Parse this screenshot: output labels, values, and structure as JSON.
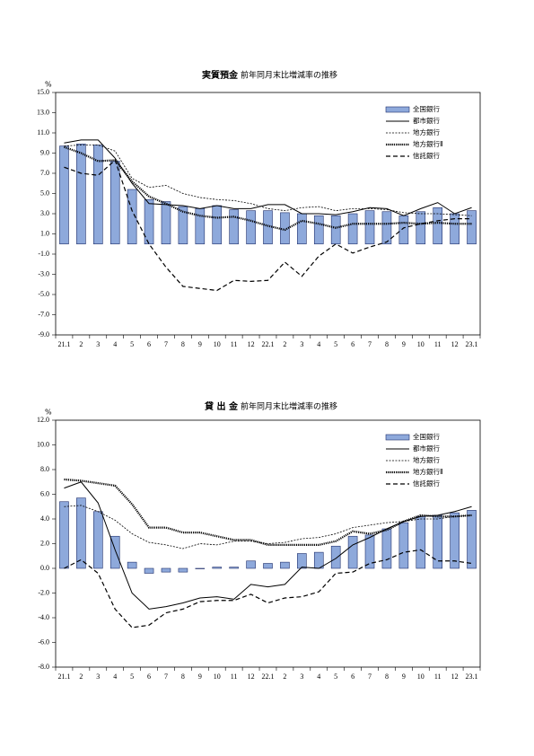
{
  "chart_data": [
    {
      "type": "combo",
      "title": "実質預金",
      "subtitle": "前年同月末比増減率の推移",
      "y_unit": "%",
      "categories": [
        "21.1",
        "2",
        "3",
        "4",
        "5",
        "6",
        "7",
        "8",
        "9",
        "10",
        "11",
        "12",
        "22.1",
        "2",
        "3",
        "4",
        "5",
        "6",
        "7",
        "8",
        "9",
        "10",
        "11",
        "12",
        "23.1"
      ],
      "ylim": [
        -9,
        15
      ],
      "yticks": [
        {
          "value": 15,
          "label": "15.0"
        },
        {
          "value": 13,
          "label": "13.0"
        },
        {
          "value": 11,
          "label": "11.0"
        },
        {
          "value": 9,
          "label": "9.0"
        },
        {
          "value": 7,
          "label": "7.0"
        },
        {
          "value": 5,
          "label": "5.0"
        },
        {
          "value": 3,
          "label": "3.0"
        },
        {
          "value": 1,
          "label": "1.0"
        },
        {
          "value": -1,
          "label": "-1.0"
        },
        {
          "value": -3,
          "label": "-3.0"
        },
        {
          "value": -5,
          "label": "-5.0"
        },
        {
          "value": -7,
          "label": "-7.0"
        },
        {
          "value": -9,
          "label": "-9.0"
        }
      ],
      "series": [
        {
          "name": "全国銀行",
          "type": "bar",
          "color": "#8ea9db",
          "values": [
            9.7,
            9.9,
            9.8,
            8.2,
            5.4,
            4.4,
            4.2,
            3.7,
            3.5,
            3.8,
            3.4,
            3.3,
            3.3,
            3.1,
            3.0,
            2.8,
            2.8,
            3.0,
            3.3,
            3.2,
            2.8,
            3.2,
            3.6,
            3.0,
            3.3
          ]
        },
        {
          "name": "都市銀行",
          "type": "line",
          "style": "solid",
          "color": "#000000",
          "values": [
            10.0,
            10.3,
            10.3,
            8.5,
            6.0,
            4.0,
            3.9,
            3.8,
            3.5,
            3.8,
            3.5,
            3.5,
            3.9,
            3.9,
            3.0,
            3.0,
            2.9,
            3.2,
            3.6,
            3.5,
            2.8,
            3.5,
            4.1,
            3.0,
            3.6
          ]
        },
        {
          "name": "地方銀行",
          "type": "line",
          "style": "dashed",
          "color": "#000000",
          "values": [
            9.7,
            9.8,
            9.8,
            9.2,
            6.5,
            5.6,
            5.8,
            5.0,
            4.6,
            4.4,
            4.3,
            4.0,
            3.5,
            3.3,
            3.6,
            3.7,
            3.3,
            3.5,
            3.5,
            3.4,
            3.1,
            3.0,
            3.0,
            2.9,
            2.8
          ]
        },
        {
          "name": "地方銀行Ⅱ",
          "type": "line",
          "style": "dotted",
          "color": "#000000",
          "values": [
            9.6,
            9.0,
            8.2,
            8.3,
            6.2,
            4.7,
            4.0,
            3.2,
            2.8,
            2.6,
            2.7,
            2.3,
            1.8,
            1.4,
            2.3,
            2.0,
            1.6,
            2.0,
            2.0,
            2.0,
            2.1,
            2.0,
            2.1,
            2.0,
            2.0
          ]
        },
        {
          "name": "信託銀行",
          "type": "line",
          "style": "longdash",
          "color": "#000000",
          "values": [
            7.6,
            7.0,
            6.8,
            8.3,
            3.3,
            0.0,
            -2.3,
            -4.2,
            -4.4,
            -4.6,
            -3.6,
            -3.7,
            -3.6,
            -1.8,
            -3.2,
            -1.2,
            0.0,
            -0.9,
            -0.3,
            0.2,
            1.6,
            2.0,
            2.3,
            2.5,
            2.5
          ]
        }
      ]
    },
    {
      "type": "combo",
      "title": "貸 出 金",
      "subtitle": "前年同月末比増減率の推移",
      "y_unit": "%",
      "categories": [
        "21.1",
        "2",
        "3",
        "4",
        "5",
        "6",
        "7",
        "8",
        "9",
        "10",
        "11",
        "12",
        "22.1",
        "2",
        "3",
        "4",
        "5",
        "6",
        "7",
        "8",
        "9",
        "10",
        "11",
        "12",
        "23.1"
      ],
      "ylim": [
        -8,
        12
      ],
      "yticks": [
        {
          "value": 12,
          "label": "12.0"
        },
        {
          "value": 10,
          "label": "10.0"
        },
        {
          "value": 8,
          "label": "8.0"
        },
        {
          "value": 6,
          "label": "6.0"
        },
        {
          "value": 4,
          "label": "4.0"
        },
        {
          "value": 2,
          "label": "2.0"
        },
        {
          "value": 0,
          "label": "0.0"
        },
        {
          "value": -2,
          "label": "-2.0"
        },
        {
          "value": -4,
          "label": "-4.0"
        },
        {
          "value": -6,
          "label": "-6.0"
        },
        {
          "value": -8,
          "label": "-8.0"
        }
      ],
      "series": [
        {
          "name": "全国銀行",
          "type": "bar",
          "color": "#8ea9db",
          "values": [
            5.4,
            5.7,
            4.6,
            2.6,
            0.5,
            -0.4,
            -0.3,
            -0.3,
            0.0,
            0.1,
            0.1,
            0.6,
            0.4,
            0.5,
            1.2,
            1.3,
            1.8,
            2.6,
            2.7,
            3.2,
            3.7,
            4.2,
            4.3,
            4.5,
            4.7
          ]
        },
        {
          "name": "都市銀行",
          "type": "line",
          "style": "solid",
          "color": "#000000",
          "values": [
            6.5,
            7.0,
            5.3,
            1.5,
            -2.0,
            -3.3,
            -3.1,
            -2.8,
            -2.4,
            -2.3,
            -2.5,
            -1.3,
            -1.5,
            -1.3,
            0.1,
            0.0,
            0.8,
            1.9,
            2.5,
            3.2,
            3.8,
            4.2,
            4.3,
            4.6,
            5.0
          ]
        },
        {
          "name": "地方銀行",
          "type": "line",
          "style": "dashed",
          "color": "#000000",
          "values": [
            5.0,
            5.1,
            4.6,
            3.9,
            2.8,
            2.1,
            1.9,
            1.6,
            2.0,
            1.9,
            2.2,
            2.2,
            2.0,
            2.1,
            2.4,
            2.5,
            2.8,
            3.3,
            3.5,
            3.7,
            3.8,
            4.0,
            4.0,
            4.2,
            4.3
          ]
        },
        {
          "name": "地方銀行Ⅱ",
          "type": "line",
          "style": "dotted",
          "color": "#000000",
          "values": [
            7.2,
            7.1,
            6.9,
            6.7,
            5.2,
            3.3,
            3.3,
            2.9,
            2.9,
            2.6,
            2.3,
            2.3,
            1.9,
            1.9,
            1.9,
            1.9,
            2.2,
            3.0,
            2.8,
            3.1,
            3.8,
            4.3,
            4.2,
            4.2,
            4.3
          ]
        },
        {
          "name": "信託銀行",
          "type": "line",
          "style": "longdash",
          "color": "#000000",
          "values": [
            0.0,
            0.7,
            -0.4,
            -3.3,
            -4.8,
            -4.6,
            -3.6,
            -3.3,
            -2.7,
            -2.6,
            -2.6,
            -2.1,
            -2.8,
            -2.4,
            -2.3,
            -1.9,
            -0.4,
            -0.3,
            0.4,
            0.7,
            1.3,
            1.5,
            0.6,
            0.6,
            0.4
          ]
        }
      ]
    }
  ]
}
